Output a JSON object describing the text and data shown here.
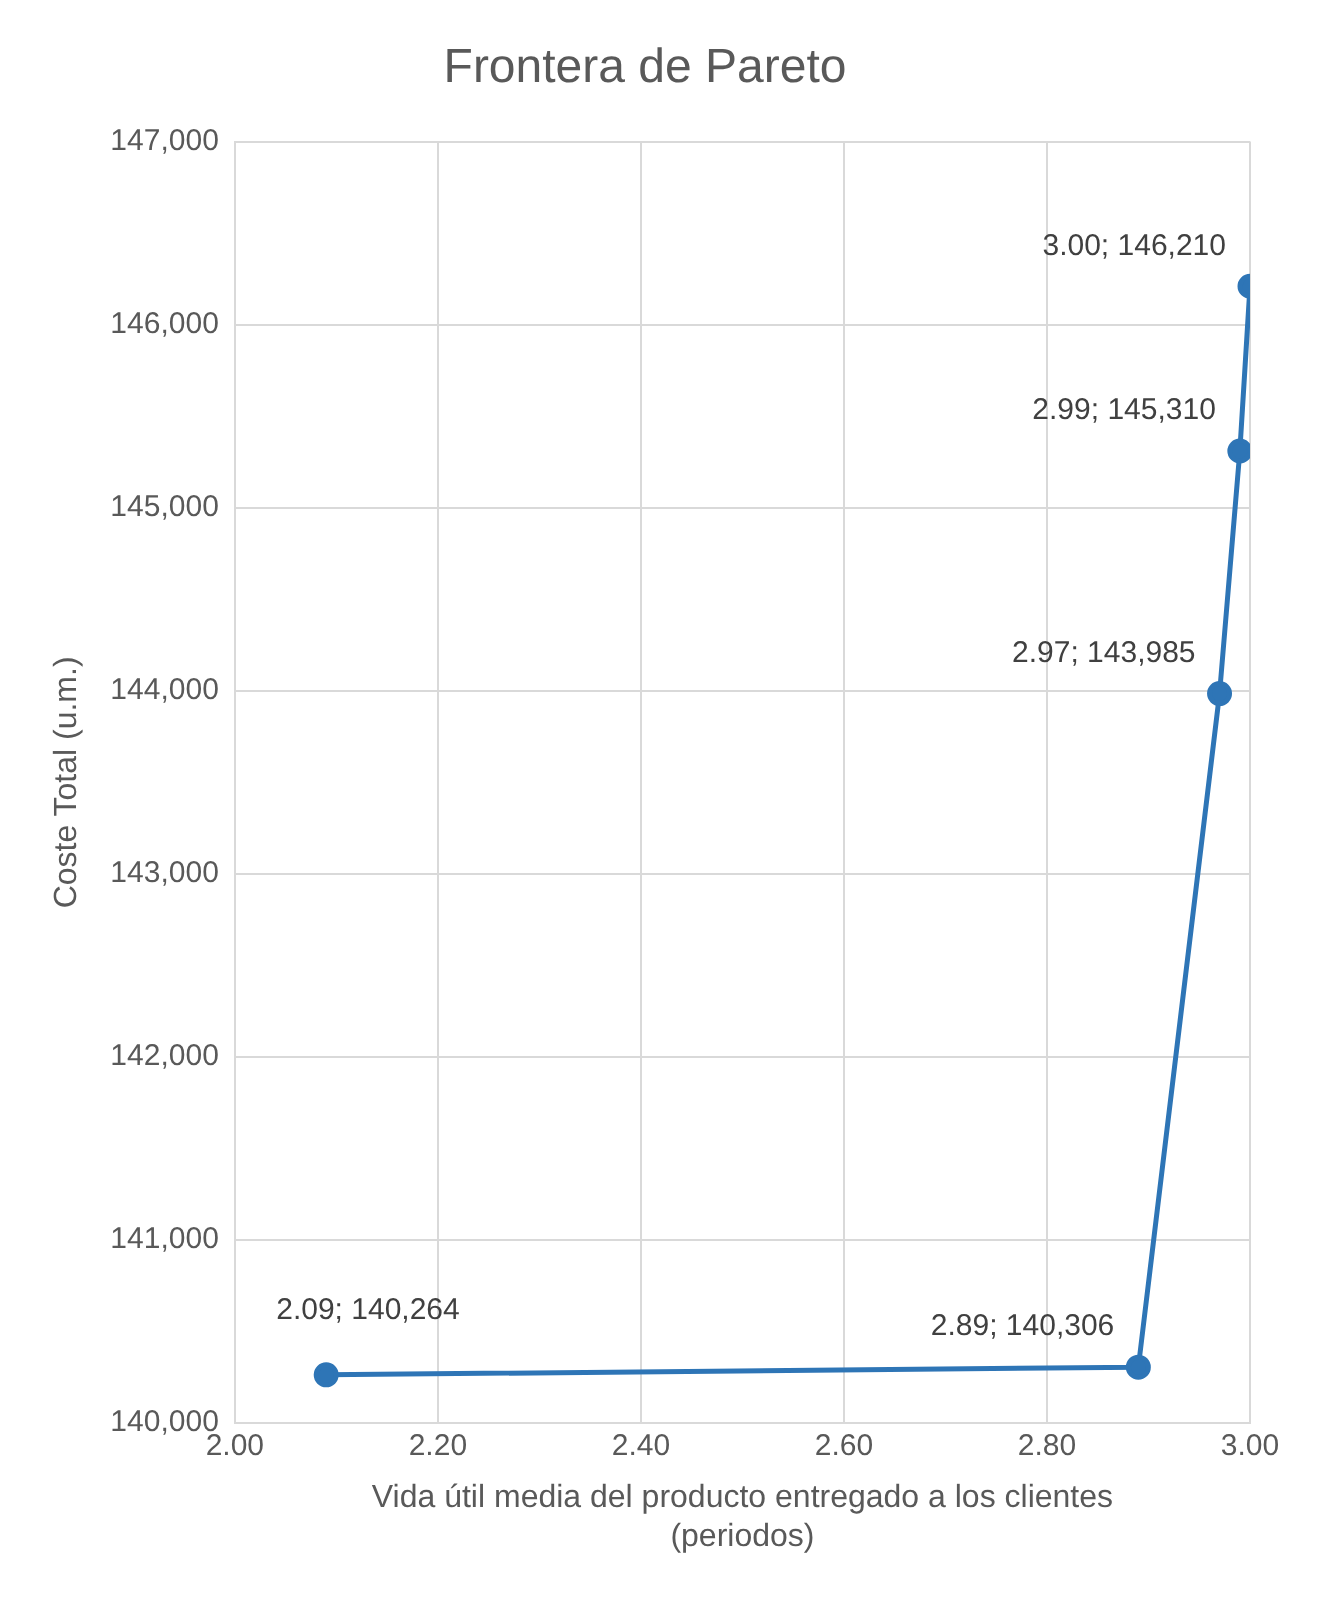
{
  "chart_data": {
    "type": "line",
    "title": "Frontera de Pareto",
    "xlabel": "Vida útil media del producto entregado a los clientes (periodos)",
    "ylabel": "Coste Total (u.m.)",
    "x": [
      2.09,
      2.89,
      2.97,
      2.99,
      3.0
    ],
    "series": [
      {
        "color": "#2e75b6",
        "values": [
          140264,
          140306,
          143985,
          145310,
          146210
        ],
        "value_labels": [
          "2.09; 140,264",
          "2.89; 140,306",
          "2.97; 143,985",
          "2.99; 145,310",
          "3.00; 146,210"
        ]
      }
    ],
    "xlim": [
      2.0,
      3.0
    ],
    "xticks": [
      {
        "value": 2.0,
        "label": "2.00"
      },
      {
        "value": 2.2,
        "label": "2.20"
      },
      {
        "value": 2.4,
        "label": "2.40"
      },
      {
        "value": 2.6,
        "label": "2.60"
      },
      {
        "value": 2.8,
        "label": "2.80"
      },
      {
        "value": 3.0,
        "label": "3.00"
      }
    ],
    "ylim": [
      140000,
      147000
    ],
    "yticks": [
      {
        "value": 140000,
        "label": "140,000"
      },
      {
        "value": 141000,
        "label": "141,000"
      },
      {
        "value": 142000,
        "label": "142,000"
      },
      {
        "value": 143000,
        "label": "143,000"
      },
      {
        "value": 144000,
        "label": "144,000"
      },
      {
        "value": 145000,
        "label": "145,000"
      },
      {
        "value": 146000,
        "label": "146,000"
      },
      {
        "value": 147000,
        "label": "147,000"
      }
    ],
    "grid": true,
    "marker": "circle",
    "legend": false
  }
}
